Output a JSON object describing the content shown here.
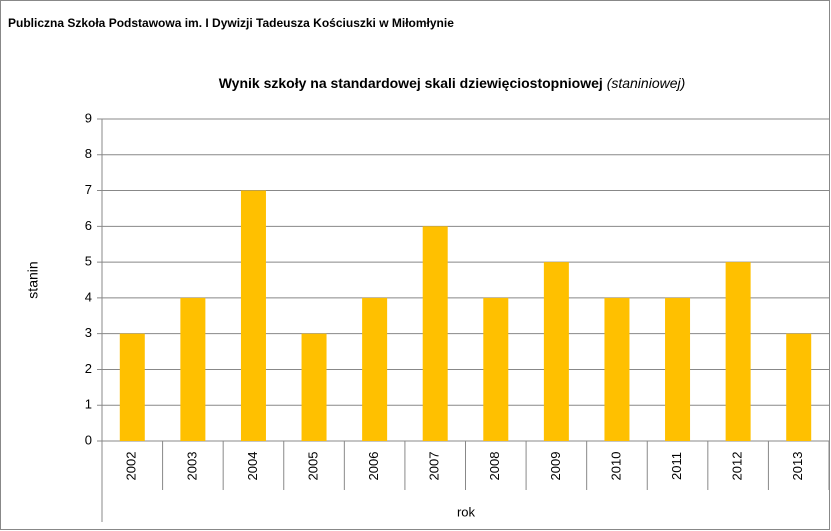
{
  "header": {
    "title": "Publiczna Szkoła Podstawowa im. I Dywizji Tadeusza Kościuszki w Miłomłynie"
  },
  "chart_data": {
    "type": "bar",
    "title": "Wynik szkoły na standardowej skali dziewięciostopniowej",
    "subtitle": "(staniniowej)",
    "x_label": "rok",
    "y_label": "stanin",
    "categories": [
      "2002",
      "2003",
      "2004",
      "2005",
      "2006",
      "2007",
      "2008",
      "2009",
      "2010",
      "2011",
      "2012",
      "2013"
    ],
    "values": [
      3,
      4,
      7,
      3,
      4,
      6,
      4,
      5,
      4,
      4,
      5,
      3
    ],
    "color": "#ffc000",
    "ylim": [
      0,
      9
    ],
    "yticks": [
      0,
      1,
      2,
      3,
      4,
      5,
      6,
      7,
      8,
      9
    ],
    "grid": true
  }
}
